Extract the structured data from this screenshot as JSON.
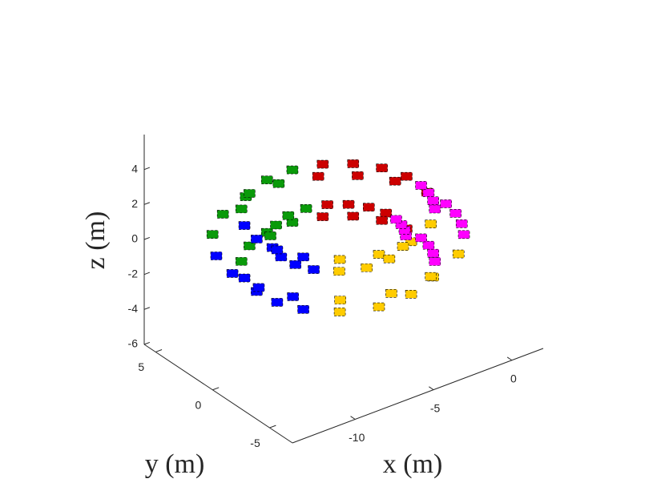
{
  "chart_data": {
    "type": "scatter3d",
    "xlabel": "x (m)",
    "ylabel": "y (m)",
    "zlabel": "z (m)",
    "xlim": [
      -14,
      2
    ],
    "ylim": [
      -7,
      6
    ],
    "zlim": [
      -6,
      6
    ],
    "xticks": [
      -10,
      -5,
      0
    ],
    "yticks": [
      -5,
      0,
      5
    ],
    "zticks": [
      -6,
      -4,
      -2,
      0,
      2,
      4
    ],
    "series": [
      {
        "color": "#cc0000",
        "x": [
          0.42,
          -1.06,
          -2.54,
          -1.06,
          -0.21,
          -1.55,
          -2.88,
          -1.55,
          -1.4,
          -2.46,
          -3.53,
          -2.46,
          -3.05,
          -3.73,
          -4.41,
          -3.73
        ],
        "y": [
          1.01,
          0.78,
          0.55,
          0.78,
          2.95,
          2.27,
          1.59,
          2.27,
          4.6,
          3.54,
          2.47,
          3.54,
          5.79,
          4.46,
          3.12,
          4.46
        ],
        "z": [
          0,
          1.5,
          0,
          -1.5,
          0,
          1.5,
          0,
          -1.5,
          0,
          1.5,
          0,
          -1.5,
          0,
          1.5,
          0,
          -1.5
        ]
      },
      {
        "color": "#0a9a0a",
        "x": [
          -5.1,
          -5.31,
          -5.51,
          -5.31,
          -7.24,
          -6.96,
          -6.67,
          -6.96,
          -9.25,
          -8.5,
          -7.75,
          -8.5,
          -10.91,
          -9.78,
          -8.64,
          -9.78
        ],
        "y": [
          6.44,
          4.95,
          3.47,
          4.95,
          6.38,
          4.91,
          3.44,
          4.91,
          5.63,
          4.33,
          3.03,
          4.33,
          4.26,
          3.28,
          2.3,
          3.28
        ],
        "z": [
          0,
          1.5,
          0,
          -1.5,
          0,
          1.5,
          0,
          -1.5,
          0,
          1.5,
          0,
          -1.5,
          0,
          1.5,
          0,
          -1.5
        ]
      },
      {
        "color": "#0000ff",
        "x": [
          -12.07,
          -10.67,
          -9.27,
          -10.67,
          -12.49,
          -11.0,
          -9.5,
          -11.0,
          -12.28,
          -10.83,
          -9.38,
          -10.83,
          -11.45,
          -10.2,
          -8.94,
          -10.2
        ],
        "y": [
          2.33,
          1.79,
          1.25,
          1.79,
          0.34,
          0.26,
          0.18,
          0.26,
          -1.68,
          -1.3,
          -0.91,
          -1.3,
          -3.54,
          -2.73,
          -1.91,
          -2.73
        ],
        "z": [
          0,
          1.5,
          0,
          -1.5,
          0,
          1.5,
          0,
          -1.5,
          0,
          1.5,
          0,
          -1.5,
          0,
          1.5,
          0,
          -1.5
        ]
      },
      {
        "color": "#ffcc00",
        "x": [
          -9.73,
          -8.87,
          -8.01,
          -8.87,
          -7.24,
          -6.96,
          -6.67,
          -6.96,
          -4.54,
          -4.88,
          -5.21,
          -4.88,
          -2.09,
          -2.99,
          -3.89,
          -2.99
        ],
        "y": [
          -5.32,
          -4.1,
          -2.87,
          -4.1,
          -6.38,
          -4.91,
          -3.44,
          -4.91,
          -6.33,
          -4.87,
          -3.41,
          -4.87,
          -5.19,
          -4.0,
          -2.8,
          -4.0
        ],
        "z": [
          0,
          1.5,
          0,
          -1.5,
          0,
          1.5,
          0,
          -1.5,
          0,
          1.5,
          0,
          -1.5,
          0,
          1.5,
          0,
          -1.5
        ]
      },
      {
        "color": "#ff00ff",
        "x": [
          -0.68,
          -1.91,
          -3.13,
          -1.91,
          -0.11,
          -1.47,
          -2.83,
          -1.47,
          0.28,
          -1.17,
          -2.62,
          -1.17,
          0.47,
          -1.02,
          -2.51,
          -1.02
        ],
        "y": [
          -3.73,
          -2.87,
          -2.01,
          -2.87,
          -2.75,
          -2.12,
          -1.48,
          -2.12,
          -1.68,
          -1.3,
          -0.91,
          -1.3,
          -0.57,
          -0.44,
          -0.3,
          -0.44
        ],
        "z": [
          0,
          1.5,
          0,
          -1.5,
          0,
          1.5,
          0,
          -1.5,
          0,
          1.5,
          0,
          -1.5,
          0,
          1.5,
          0,
          -1.5
        ]
      }
    ]
  }
}
